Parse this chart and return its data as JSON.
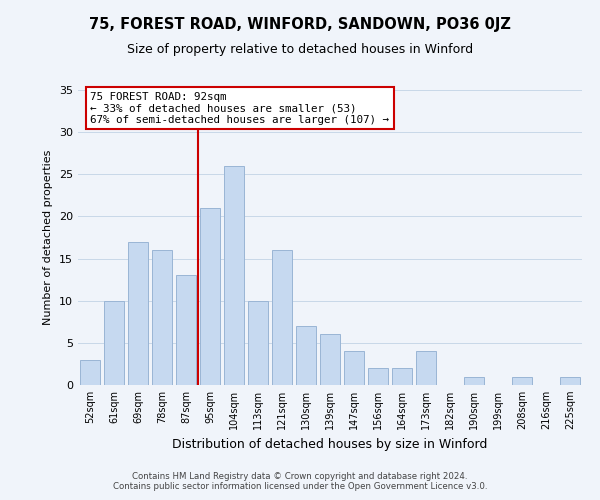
{
  "title1": "75, FOREST ROAD, WINFORD, SANDOWN, PO36 0JZ",
  "title2": "Size of property relative to detached houses in Winford",
  "xlabel": "Distribution of detached houses by size in Winford",
  "ylabel": "Number of detached properties",
  "categories": [
    "52sqm",
    "61sqm",
    "69sqm",
    "78sqm",
    "87sqm",
    "95sqm",
    "104sqm",
    "113sqm",
    "121sqm",
    "130sqm",
    "139sqm",
    "147sqm",
    "156sqm",
    "164sqm",
    "173sqm",
    "182sqm",
    "190sqm",
    "199sqm",
    "208sqm",
    "216sqm",
    "225sqm"
  ],
  "values": [
    3,
    10,
    17,
    16,
    13,
    21,
    26,
    10,
    16,
    7,
    6,
    4,
    2,
    2,
    4,
    0,
    1,
    0,
    1,
    0,
    1
  ],
  "bar_color": "#c6d9f0",
  "bar_edge_color": "#9ab5d5",
  "property_line_color": "#cc0000",
  "annotation_text": "75 FOREST ROAD: 92sqm\n← 33% of detached houses are smaller (53)\n67% of semi-detached houses are larger (107) →",
  "annotation_box_color": "#ffffff",
  "annotation_box_edge": "#cc0000",
  "ylim": [
    0,
    35
  ],
  "yticks": [
    0,
    5,
    10,
    15,
    20,
    25,
    30,
    35
  ],
  "footer_line1": "Contains HM Land Registry data © Crown copyright and database right 2024.",
  "footer_line2": "Contains public sector information licensed under the Open Government Licence v3.0.",
  "bg_color": "#f0f4fa"
}
